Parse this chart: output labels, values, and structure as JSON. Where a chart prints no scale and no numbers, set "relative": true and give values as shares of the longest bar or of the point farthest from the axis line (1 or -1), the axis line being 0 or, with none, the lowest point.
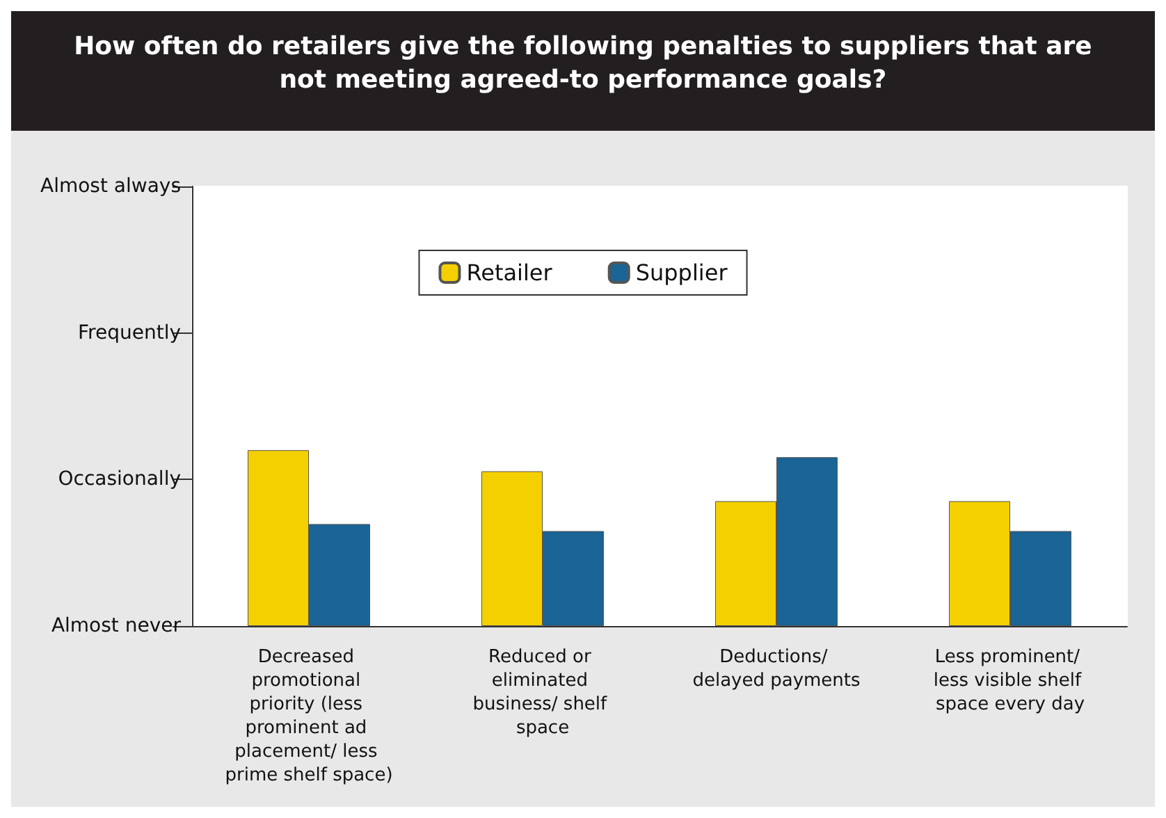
{
  "chart_data": {
    "type": "bar",
    "title": "How often do retailers give the following penalties to suppliers that are not meeting agreed-to performance goals?",
    "categories": [
      "Decreased promotional priority (less prominent ad placement/ less prime shelf space)",
      "Reduced or eliminated business/ shelf space",
      "Deductions/ delayed payments",
      "Less prominent/ less visible shelf space every day"
    ],
    "series": [
      {
        "name": "Retailer",
        "color": "#f5d000",
        "values": [
          1,
          0.88,
          0.71,
          0.71
        ]
      },
      {
        "name": "Supplier",
        "color": "#1a6496",
        "values": [
          0.58,
          0.54,
          0.96,
          0.54
        ]
      }
    ],
    "relative": true,
    "annotations": [
      "Almost never",
      "Occasionally",
      "Frequently",
      "Almost always"
    ],
    "legend": "top"
  }
}
